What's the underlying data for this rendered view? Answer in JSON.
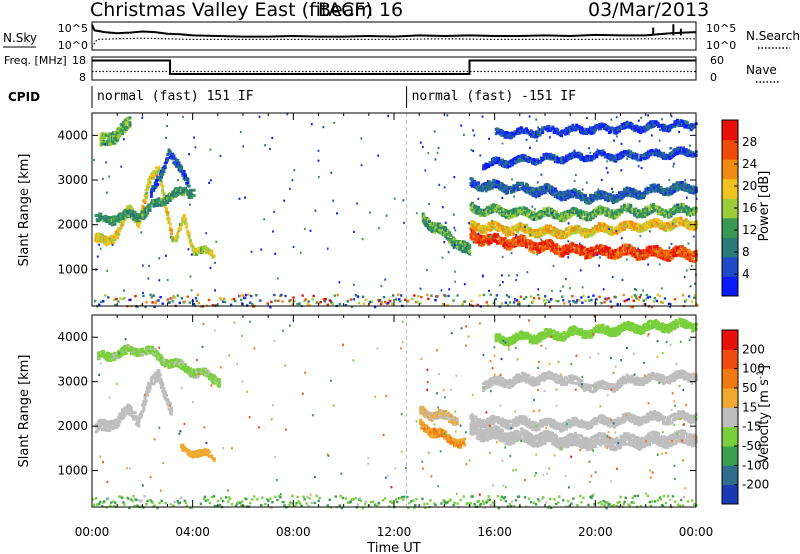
{
  "header": {
    "title": "Christmas Valley East (fitACF)",
    "beam": "Beam 16",
    "date": "03/Mar/2013"
  },
  "chart_data": [
    {
      "type": "line",
      "panel": "noise",
      "left_label": "N.Sky",
      "right_label": "N.Search",
      "left_ticks": [
        "10^5",
        "10^0"
      ],
      "right_ticks": [
        "10^5",
        "10^0"
      ],
      "series": [
        {
          "style": "solid",
          "x": [
            0,
            0.1,
            0.5,
            1,
            1.5,
            2,
            2.5,
            3,
            3.5,
            4,
            5,
            6,
            7,
            8,
            9,
            10,
            11,
            12,
            13,
            14,
            15,
            16,
            17,
            18,
            19,
            20,
            21,
            22,
            22.5,
            23,
            23.5,
            24
          ],
          "y": [
            4.5,
            3.5,
            3.2,
            3.0,
            3.1,
            3.3,
            3.2,
            2.9,
            2.8,
            2.6,
            2.5,
            2.4,
            2.4,
            2.5,
            2.4,
            2.4,
            2.5,
            2.4,
            2.6,
            2.5,
            2.6,
            2.5,
            2.5,
            2.6,
            2.5,
            2.7,
            2.6,
            2.6,
            2.8,
            3.0,
            3.1,
            3.2
          ]
        },
        {
          "style": "dotted",
          "x": [
            0,
            0.2,
            1,
            2,
            3,
            4,
            6,
            8,
            10,
            12,
            14,
            16,
            18,
            20,
            22,
            24
          ],
          "y": [
            0.5,
            1.9,
            2.0,
            2.1,
            2.0,
            1.9,
            1.9,
            1.9,
            1.9,
            1.9,
            2.0,
            1.9,
            1.9,
            1.9,
            2.0,
            2.0
          ]
        }
      ],
      "spikes": [
        {
          "x": 22.3,
          "y": 4.0
        },
        {
          "x": 23.1,
          "y": 4.6
        },
        {
          "x": 23.4,
          "y": 3.8
        }
      ],
      "ylim": [
        0,
        5
      ]
    },
    {
      "type": "line",
      "panel": "frequency",
      "left_label": "Freq. [MHz]",
      "right_label": "Nave",
      "left_ticks": [
        "18",
        "8"
      ],
      "right_ticks": [
        "60",
        "0"
      ],
      "series": [
        {
          "name": "Freq.",
          "style": "solid",
          "x": [
            0,
            3.1,
            3.1,
            15.0,
            15.0,
            24
          ],
          "y": [
            16.5,
            16.5,
            10.6,
            10.6,
            16.5,
            16.5
          ]
        },
        {
          "name": "Nave",
          "style": "dotted",
          "x": [
            0,
            24
          ],
          "y": [
            11.7,
            11.7
          ]
        }
      ],
      "ylim": [
        8,
        18
      ]
    },
    {
      "type": "table",
      "panel": "cpid",
      "label": "CPID",
      "segments": [
        {
          "start": 0,
          "end": 12.5,
          "text": "normal (fast) 151 IF"
        },
        {
          "start": 12.5,
          "end": 24,
          "text": "normal (fast) -151 IF"
        }
      ]
    },
    {
      "type": "heatmap",
      "panel": "power",
      "ylabel": "Slant Range [km]",
      "y_ticks": [
        1000,
        2000,
        3000,
        4000
      ],
      "ylim": [
        180,
        4500
      ],
      "xlim": [
        0,
        24
      ],
      "colorbar": {
        "label": "Power [dB]",
        "ticks": [
          4,
          8,
          12,
          16,
          20,
          24,
          28
        ],
        "range": [
          0,
          32
        ],
        "colors": [
          "#0a1aff",
          "#1f49c8",
          "#2a7a78",
          "#3a9a55",
          "#9ccc3c",
          "#f0c21f",
          "#f08a10",
          "#ee4a08",
          "#e81008"
        ]
      },
      "features": [
        {
          "t": [
            0.1,
            0.5,
            1.0,
            1.4,
            1.8,
            2.2,
            2.6,
            3.1
          ],
          "r": [
            1720,
            1680,
            1900,
            2400,
            2130,
            2950,
            3300,
            1900
          ],
          "w": 180,
          "v": 19
        },
        {
          "t": [
            3.1,
            3.3,
            3.6,
            4.0,
            4.4,
            4.8
          ],
          "r": [
            1750,
            1700,
            2200,
            1500,
            1450,
            1400
          ],
          "w": 140,
          "v": 17
        },
        {
          "t": [
            0.1,
            1.0,
            2.0,
            3.0,
            4.0
          ],
          "r": [
            2150,
            2200,
            2300,
            2700,
            2800
          ],
          "w": 160,
          "v": 11
        },
        {
          "t": [
            0.3,
            1.0,
            1.5
          ],
          "r": [
            3900,
            4100,
            4300
          ],
          "w": 250,
          "v": 14
        },
        {
          "t": [
            2.3,
            2.7,
            3.0,
            3.4,
            3.8
          ],
          "r": [
            2700,
            3200,
            3700,
            3300,
            3000
          ],
          "w": 180,
          "v": 6
        },
        {
          "t": [
            13.1,
            13.8,
            14.5,
            15.0
          ],
          "r": [
            2200,
            1900,
            1650,
            1400
          ],
          "w": 220,
          "v": 12
        },
        {
          "t": [
            15.0,
            16.0,
            17.0,
            18.0,
            19.0,
            20.0,
            21.0,
            22.0,
            23.0,
            24.0
          ],
          "r": [
            1800,
            1700,
            1650,
            1550,
            1500,
            1450,
            1450,
            1430,
            1420,
            1400
          ],
          "w": 230,
          "v": 27
        },
        {
          "t": [
            15.0,
            16.0,
            17.0,
            18.0,
            19.0,
            20.0,
            21.0,
            22.0,
            23.0,
            24.0
          ],
          "r": [
            2050,
            1980,
            1950,
            1900,
            1900,
            1950,
            2000,
            2050,
            2080,
            2100
          ],
          "w": 200,
          "v": 20
        },
        {
          "t": [
            15.0,
            16.0,
            17.0,
            18.0,
            19.0,
            20.0,
            21.0,
            22.0,
            23.0,
            24.0
          ],
          "r": [
            2400,
            2350,
            2300,
            2280,
            2270,
            2300,
            2350,
            2350,
            2350,
            2400
          ],
          "w": 160,
          "v": 13
        },
        {
          "t": [
            15.0,
            16.0,
            17.0,
            18.0,
            19.0,
            20.0,
            21.0,
            22.0,
            23.0,
            24.0
          ],
          "r": [
            2950,
            2900,
            2850,
            2800,
            2700,
            2650,
            2700,
            2800,
            2850,
            2900
          ],
          "w": 160,
          "v": 7
        },
        {
          "t": [
            15.5,
            17.0,
            18.5,
            20.0,
            21.5,
            23.0,
            24.0
          ],
          "r": [
            3400,
            3500,
            3550,
            3600,
            3600,
            3650,
            3700
          ],
          "w": 140,
          "v": 5
        },
        {
          "t": [
            16.0,
            18.0,
            20.0,
            22.0,
            24.0
          ],
          "r": [
            4100,
            4150,
            4200,
            4250,
            4300
          ],
          "w": 140,
          "v": 4
        }
      ]
    },
    {
      "type": "heatmap",
      "panel": "velocity",
      "xlabel": "Time UT",
      "ylabel": "Slant Range [km]",
      "y_ticks": [
        1000,
        2000,
        3000,
        4000
      ],
      "ylim": [
        180,
        4500
      ],
      "xlim": [
        0,
        24
      ],
      "x_ticks": [
        "00:00",
        "04:00",
        "08:00",
        "12:00",
        "16:00",
        "20:00",
        "00:00"
      ],
      "colorbar": {
        "label": "Velocity [m s^-1]",
        "ticks": [
          200,
          100,
          50,
          15,
          -15,
          -50,
          -100,
          -200
        ],
        "range": [
          -250,
          250
        ],
        "colors": [
          "#1a3ab4",
          "#2e6e8c",
          "#3aa050",
          "#7ad03c",
          "#bebebe",
          "#f0a830",
          "#f07a10",
          "#f04a10",
          "#e81008"
        ]
      },
      "features": [
        {
          "t": [
            0.1,
            0.5,
            1.0,
            1.4,
            1.8,
            2.2,
            2.6,
            3.1
          ],
          "r": [
            2000,
            2050,
            2200,
            2400,
            2200,
            2900,
            3200,
            2400
          ],
          "w": 220,
          "v": 0
        },
        {
          "t": [
            3.5,
            3.8,
            4.2,
            4.8
          ],
          "r": [
            1550,
            1500,
            1450,
            1380
          ],
          "w": 150,
          "v": 60
        },
        {
          "t": [
            0.2,
            1.0,
            2.0,
            3.0,
            4.0,
            5.0
          ],
          "r": [
            3600,
            3700,
            3800,
            3500,
            3300,
            3100
          ],
          "w": 200,
          "v": -40
        },
        {
          "t": [
            13.0,
            13.6,
            14.2,
            14.8
          ],
          "r": [
            2100,
            1900,
            1750,
            1650
          ],
          "w": 180,
          "v": 80
        },
        {
          "t": [
            15.0,
            16.0,
            17.0,
            18.0,
            19.0,
            20.0,
            21.0,
            22.0,
            23.0,
            24.0
          ],
          "r": [
            1950,
            1850,
            1800,
            1750,
            1700,
            1700,
            1700,
            1720,
            1750,
            1800
          ],
          "w": 260,
          "v": 0
        },
        {
          "t": [
            15.0,
            16.0,
            17.0,
            18.0,
            19.0,
            20.0,
            21.0,
            22.0,
            23.0,
            24.0
          ],
          "r": [
            2200,
            2150,
            2150,
            2100,
            2100,
            2150,
            2200,
            2250,
            2250,
            2300
          ],
          "w": 200,
          "v": 0
        },
        {
          "t": [
            15.5,
            17.0,
            18.5,
            20.0,
            21.5,
            23.0,
            24.0
          ],
          "r": [
            3000,
            3100,
            3150,
            2900,
            3100,
            3150,
            3200
          ],
          "w": 180,
          "v": -10
        },
        {
          "t": [
            16.0,
            18.0,
            20.0,
            22.0,
            24.0
          ],
          "r": [
            4000,
            4100,
            4200,
            4300,
            4350
          ],
          "w": 200,
          "v": -60
        },
        {
          "t": [
            13.0,
            13.5,
            14.0,
            14.5
          ],
          "r": [
            2400,
            2300,
            2250,
            2200
          ],
          "w": 160,
          "v": 30
        }
      ]
    }
  ]
}
